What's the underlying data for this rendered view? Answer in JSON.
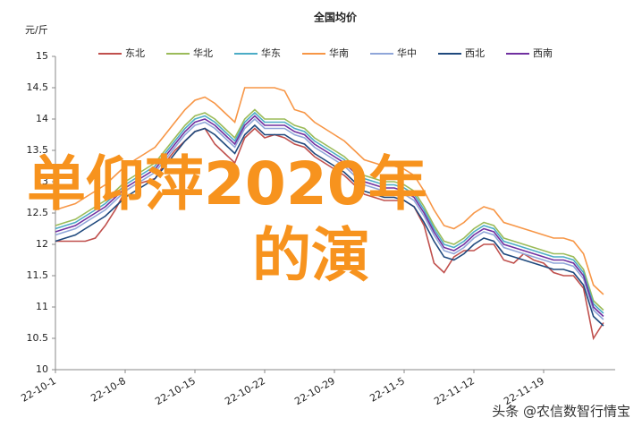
{
  "chart_data": {
    "type": "line",
    "title": "全国均价",
    "y_label": "元/斤",
    "categories": [
      "22-10-1",
      null,
      null,
      null,
      null,
      null,
      null,
      "22-10-8",
      null,
      null,
      null,
      null,
      null,
      null,
      "22-10-15",
      null,
      null,
      null,
      null,
      null,
      null,
      "22-10-22",
      null,
      null,
      null,
      null,
      null,
      null,
      "22-10-29",
      null,
      null,
      null,
      null,
      null,
      null,
      "22-11-5",
      null,
      null,
      null,
      null,
      null,
      null,
      "22-11-12",
      null,
      null,
      null,
      null,
      null,
      null,
      "22-11-19",
      null,
      null,
      null,
      null,
      null,
      null
    ],
    "ylim": [
      10,
      15
    ],
    "yticks": [
      10,
      10.5,
      11,
      11.5,
      12,
      12.5,
      13,
      13.5,
      14,
      14.5,
      15
    ],
    "grid": false,
    "series": [
      {
        "name": "东北",
        "color": "#c0504d",
        "values": [
          12.05,
          12.05,
          12.05,
          12.05,
          12.1,
          12.3,
          12.55,
          12.85,
          12.95,
          13.0,
          13.05,
          13.3,
          13.5,
          13.65,
          13.8,
          13.85,
          13.6,
          13.45,
          13.3,
          13.7,
          13.85,
          13.7,
          13.75,
          13.7,
          13.6,
          13.55,
          13.4,
          13.3,
          13.2,
          13.1,
          12.95,
          12.8,
          12.75,
          12.7,
          12.7,
          12.7,
          12.6,
          12.3,
          11.7,
          11.55,
          11.8,
          11.9,
          11.9,
          12.0,
          12.0,
          11.75,
          11.7,
          11.85,
          11.75,
          11.7,
          11.55,
          11.5,
          11.5,
          11.3,
          10.5,
          10.75
        ]
      },
      {
        "name": "华北",
        "color": "#9bbb59",
        "values": [
          12.3,
          12.35,
          12.4,
          12.5,
          12.6,
          12.7,
          12.85,
          13.0,
          13.1,
          13.2,
          13.3,
          13.5,
          13.7,
          13.9,
          14.05,
          14.1,
          14.0,
          13.85,
          13.7,
          14.0,
          14.15,
          14.0,
          14.0,
          14.0,
          13.9,
          13.85,
          13.7,
          13.6,
          13.5,
          13.4,
          13.25,
          13.1,
          13.05,
          13.0,
          13.0,
          12.95,
          12.85,
          12.6,
          12.3,
          12.05,
          12.0,
          12.1,
          12.25,
          12.35,
          12.3,
          12.1,
          12.05,
          12.0,
          11.95,
          11.9,
          11.85,
          11.85,
          11.8,
          11.6,
          11.1,
          10.95
        ]
      },
      {
        "name": "华东",
        "color": "#4bacc6",
        "values": [
          12.25,
          12.3,
          12.35,
          12.45,
          12.55,
          12.65,
          12.8,
          12.95,
          13.05,
          13.15,
          13.25,
          13.45,
          13.65,
          13.85,
          14.0,
          14.05,
          13.95,
          13.8,
          13.65,
          13.95,
          14.1,
          13.95,
          13.95,
          13.95,
          13.85,
          13.8,
          13.65,
          13.55,
          13.45,
          13.35,
          13.2,
          13.05,
          13.0,
          12.95,
          12.95,
          12.9,
          12.8,
          12.55,
          12.25,
          12.0,
          11.95,
          12.05,
          12.2,
          12.3,
          12.25,
          12.05,
          12.0,
          11.95,
          11.9,
          11.85,
          11.8,
          11.8,
          11.75,
          11.55,
          11.05,
          10.9
        ]
      },
      {
        "name": "华南",
        "color": "#f79646",
        "values": [
          12.55,
          12.6,
          12.65,
          12.75,
          12.85,
          12.95,
          13.1,
          13.25,
          13.35,
          13.45,
          13.55,
          13.75,
          13.95,
          14.15,
          14.3,
          14.35,
          14.25,
          14.1,
          13.95,
          14.5,
          14.5,
          14.5,
          14.5,
          14.45,
          14.15,
          14.1,
          13.95,
          13.85,
          13.75,
          13.65,
          13.5,
          13.35,
          13.3,
          13.25,
          13.25,
          13.2,
          13.1,
          12.85,
          12.55,
          12.3,
          12.25,
          12.35,
          12.5,
          12.6,
          12.55,
          12.35,
          12.3,
          12.25,
          12.2,
          12.15,
          12.1,
          12.1,
          12.05,
          11.85,
          11.35,
          11.2
        ]
      },
      {
        "name": "华中",
        "color": "#8fa6d9",
        "values": [
          12.15,
          12.2,
          12.25,
          12.35,
          12.45,
          12.55,
          12.7,
          12.85,
          12.95,
          13.05,
          13.15,
          13.35,
          13.55,
          13.75,
          13.9,
          13.95,
          13.85,
          13.7,
          13.55,
          13.85,
          14.0,
          13.85,
          13.85,
          13.85,
          13.75,
          13.7,
          13.55,
          13.45,
          13.35,
          13.25,
          13.1,
          12.95,
          12.9,
          12.85,
          12.85,
          12.8,
          12.7,
          12.45,
          12.15,
          11.9,
          11.85,
          11.95,
          12.1,
          12.2,
          12.15,
          11.95,
          11.9,
          11.85,
          11.8,
          11.75,
          11.7,
          11.7,
          11.65,
          11.45,
          10.95,
          10.8
        ]
      },
      {
        "name": "西北",
        "color": "#1f497d",
        "values": [
          12.05,
          12.1,
          12.15,
          12.25,
          12.35,
          12.45,
          12.6,
          12.75,
          12.85,
          12.95,
          13.05,
          13.25,
          13.45,
          13.65,
          13.8,
          13.85,
          13.75,
          13.6,
          13.45,
          13.75,
          13.9,
          13.75,
          13.75,
          13.75,
          13.65,
          13.6,
          13.45,
          13.35,
          13.25,
          13.15,
          13.0,
          12.85,
          12.8,
          12.75,
          12.75,
          12.7,
          12.6,
          12.35,
          12.05,
          11.8,
          11.75,
          11.85,
          12.0,
          12.1,
          12.05,
          11.85,
          11.8,
          11.75,
          11.7,
          11.65,
          11.6,
          11.6,
          11.55,
          11.35,
          10.85,
          10.7
        ]
      },
      {
        "name": "西南",
        "color": "#7030a0",
        "values": [
          12.2,
          12.25,
          12.3,
          12.4,
          12.5,
          12.6,
          12.75,
          12.9,
          13.0,
          13.1,
          13.2,
          13.4,
          13.6,
          13.8,
          13.95,
          14.0,
          13.9,
          13.75,
          13.6,
          13.9,
          14.05,
          13.9,
          13.9,
          13.9,
          13.8,
          13.75,
          13.6,
          13.5,
          13.4,
          13.3,
          13.15,
          13.0,
          12.95,
          12.9,
          12.9,
          12.85,
          12.75,
          12.5,
          12.2,
          11.95,
          11.9,
          12.0,
          12.15,
          12.25,
          12.2,
          12.0,
          11.95,
          11.9,
          11.85,
          11.8,
          11.75,
          11.75,
          11.7,
          11.5,
          11.0,
          10.85
        ]
      }
    ]
  },
  "overlay": [
    "单仰萍2020年",
    "的演"
  ],
  "footer": "头条 @农信数智行情宝"
}
